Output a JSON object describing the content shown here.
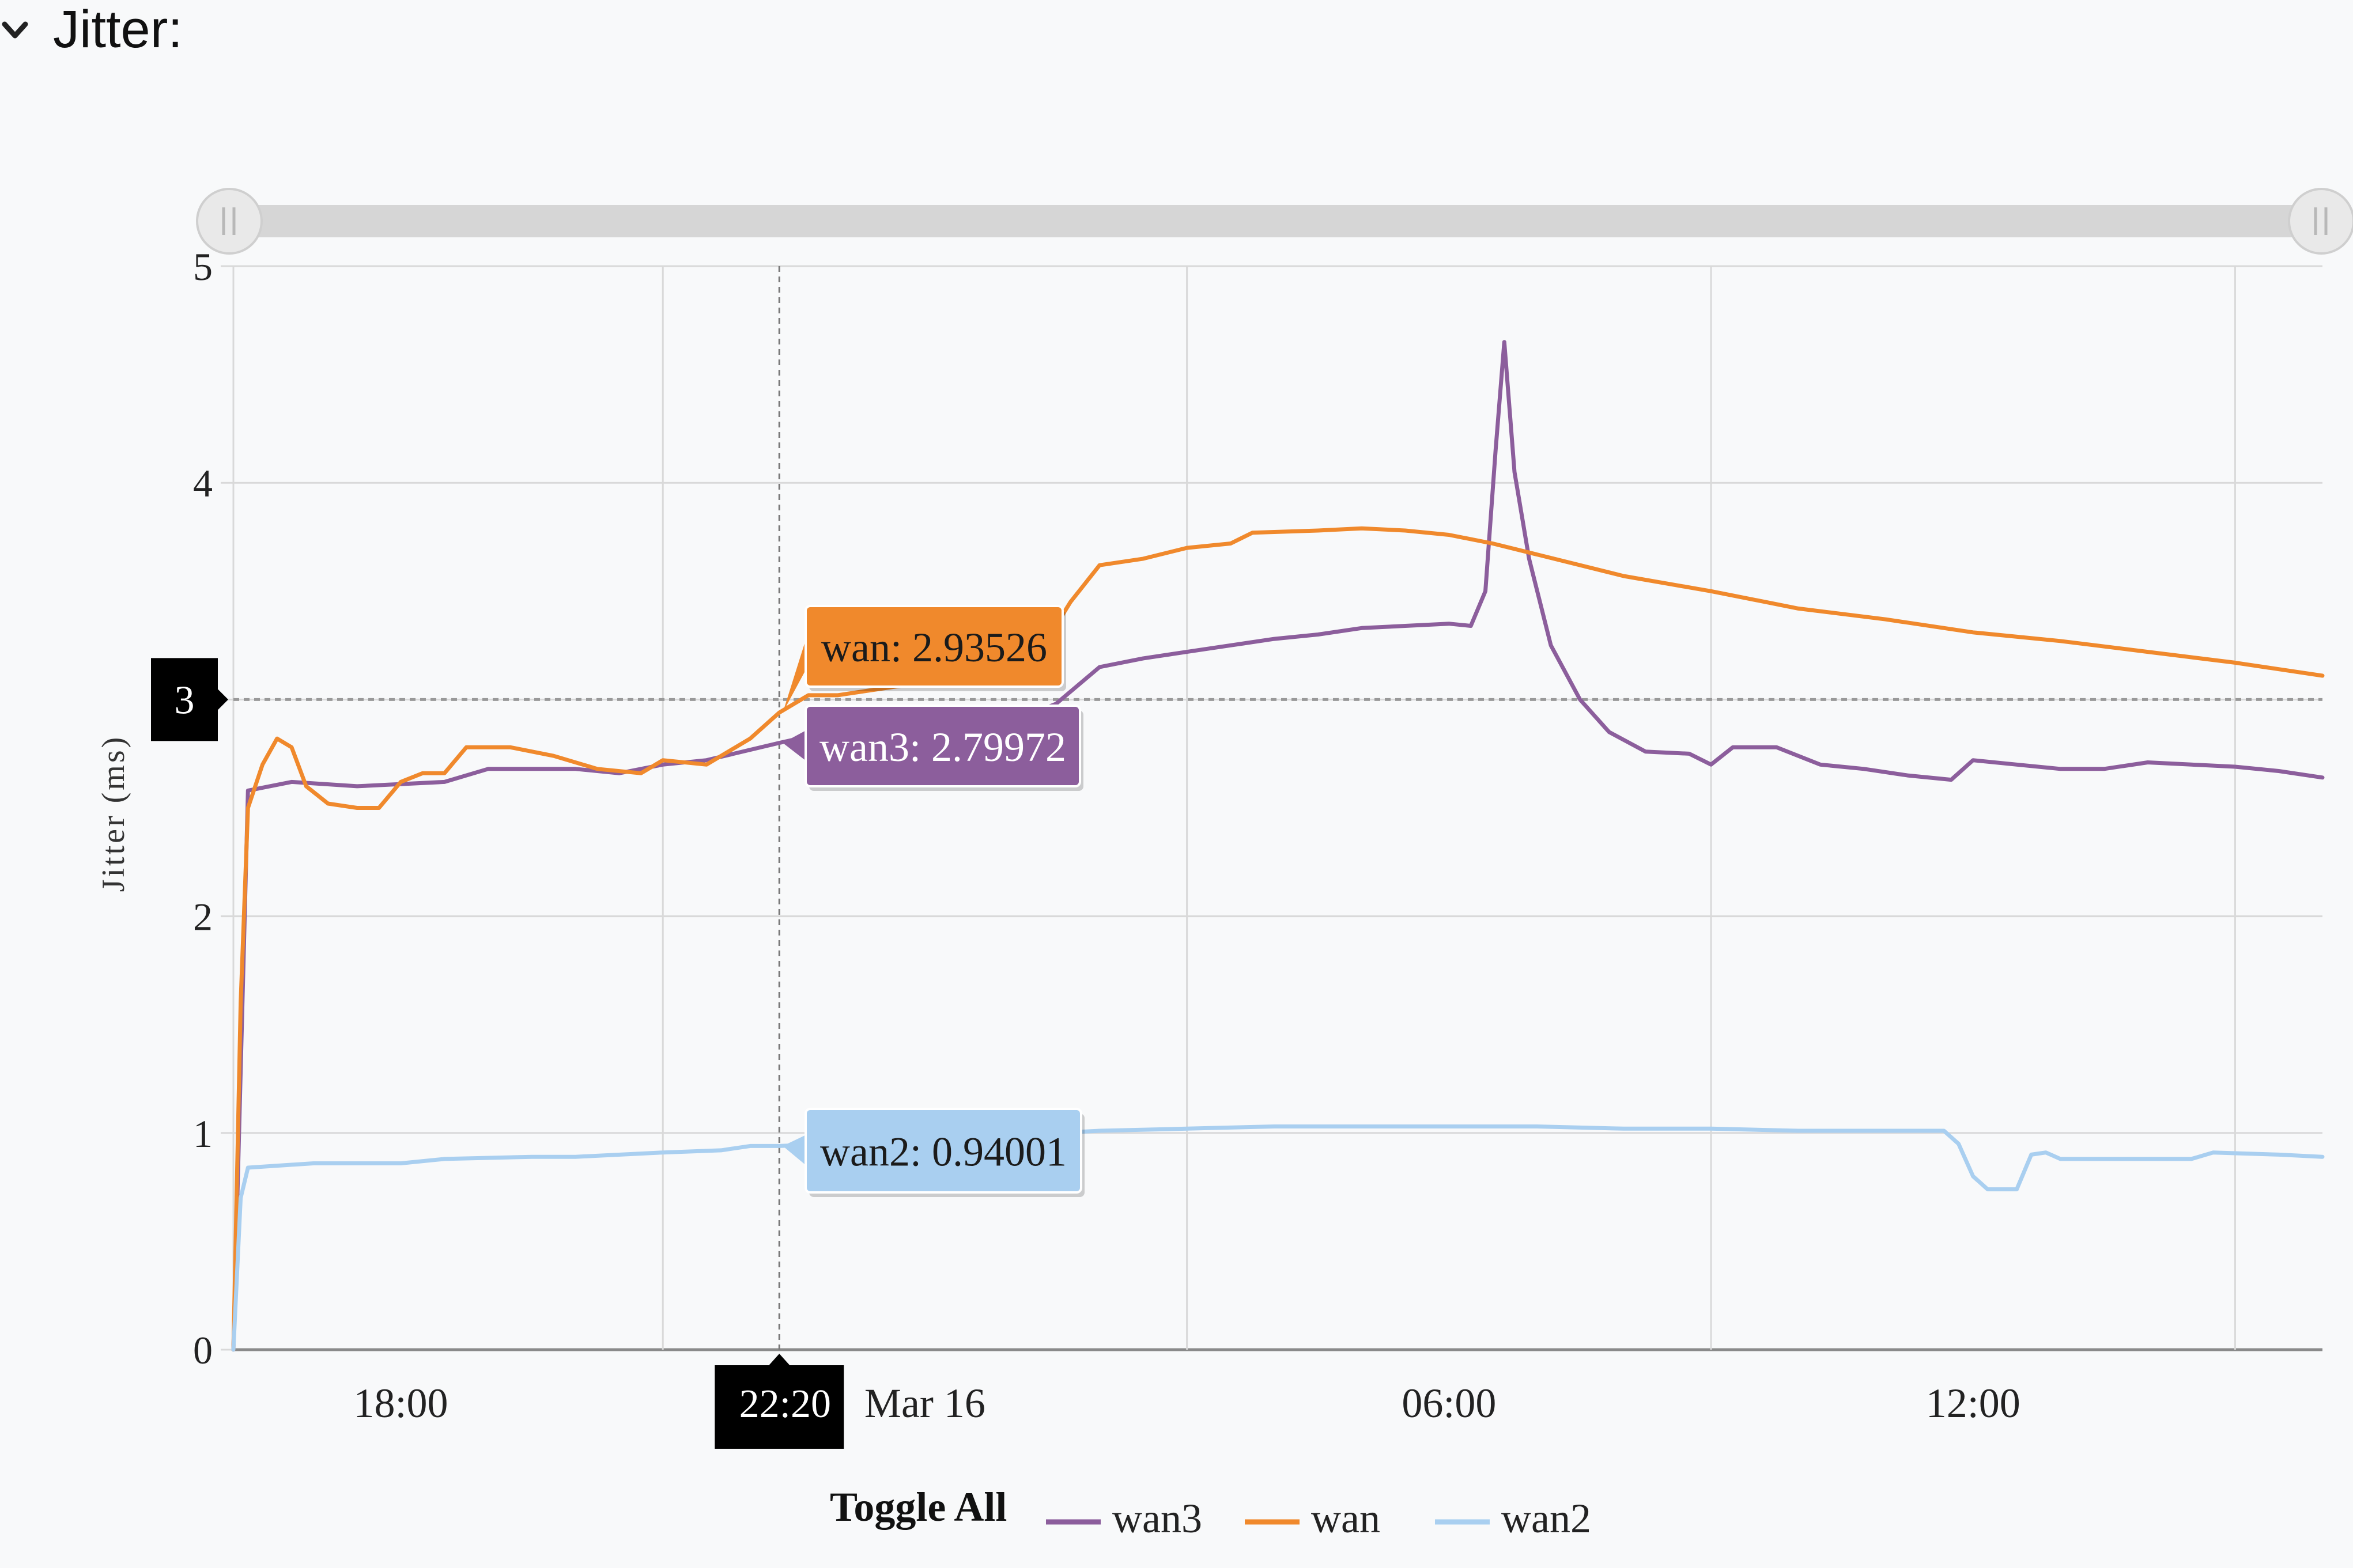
{
  "header": {
    "title": "Jitter:",
    "collapse_icon": "chevron-down-icon"
  },
  "chart_data": {
    "type": "line",
    "title": "",
    "xlabel": "",
    "ylabel": "Jitter (ms)",
    "ylim": [
      0,
      5
    ],
    "yticks": [
      0,
      1,
      2,
      3,
      4,
      5
    ],
    "xlim": [
      "2024-03-15T16:05",
      "2024-03-16T16:00"
    ],
    "xticks": [
      {
        "t": "2024-03-15T18:00",
        "label": "18:00"
      },
      {
        "t": "2024-03-16T00:00",
        "label": "Mar 16"
      },
      {
        "t": "2024-03-16T06:00",
        "label": "06:00"
      },
      {
        "t": "2024-03-16T12:00",
        "label": "12:00"
      }
    ],
    "gridlines_x": [
      "2024-03-15T21:00",
      "2024-03-16T03:00",
      "2024-03-16T09:00",
      "2024-03-16T15:00"
    ],
    "grid": true,
    "legend_position": "bottom",
    "toggle_all_label": "Toggle All",
    "crosshair": {
      "time": "2024-03-15T22:20",
      "time_label": "22:20",
      "y_value": 3,
      "y_label": "3"
    },
    "tooltips": [
      {
        "series": "wan",
        "text": "wan: 2.93526"
      },
      {
        "series": "wan3",
        "text": "wan3: 2.79972"
      },
      {
        "series": "wan2",
        "text": "wan2: 0.94001"
      }
    ],
    "series": [
      {
        "name": "wan3",
        "color": "#8c5e9c",
        "points": [
          [
            "2024-03-15T16:05",
            0.0
          ],
          [
            "2024-03-15T16:15",
            2.58
          ],
          [
            "2024-03-15T16:45",
            2.62
          ],
          [
            "2024-03-15T17:30",
            2.6
          ],
          [
            "2024-03-15T18:30",
            2.62
          ],
          [
            "2024-03-15T19:00",
            2.68
          ],
          [
            "2024-03-15T20:00",
            2.68
          ],
          [
            "2024-03-15T20:30",
            2.66
          ],
          [
            "2024-03-15T21:00",
            2.7
          ],
          [
            "2024-03-15T21:30",
            2.72
          ],
          [
            "2024-03-15T22:20",
            2.8
          ],
          [
            "2024-03-15T23:00",
            2.86
          ],
          [
            "2024-03-16T00:00",
            2.88
          ],
          [
            "2024-03-16T01:00",
            2.9
          ],
          [
            "2024-03-16T01:30",
            2.98
          ],
          [
            "2024-03-16T02:00",
            3.15
          ],
          [
            "2024-03-16T02:30",
            3.19
          ],
          [
            "2024-03-16T03:00",
            3.22
          ],
          [
            "2024-03-16T03:30",
            3.25
          ],
          [
            "2024-03-16T04:00",
            3.28
          ],
          [
            "2024-03-16T04:30",
            3.3
          ],
          [
            "2024-03-16T05:00",
            3.33
          ],
          [
            "2024-03-16T05:30",
            3.34
          ],
          [
            "2024-03-16T06:00",
            3.35
          ],
          [
            "2024-03-16T06:15",
            3.34
          ],
          [
            "2024-03-16T06:25",
            3.5
          ],
          [
            "2024-03-16T06:32",
            4.15
          ],
          [
            "2024-03-16T06:38",
            4.65
          ],
          [
            "2024-03-16T06:45",
            4.05
          ],
          [
            "2024-03-16T06:55",
            3.65
          ],
          [
            "2024-03-16T07:10",
            3.25
          ],
          [
            "2024-03-16T07:30",
            3.0
          ],
          [
            "2024-03-16T07:50",
            2.85
          ],
          [
            "2024-03-16T08:15",
            2.76
          ],
          [
            "2024-03-16T08:45",
            2.75
          ],
          [
            "2024-03-16T09:00",
            2.7
          ],
          [
            "2024-03-16T09:15",
            2.78
          ],
          [
            "2024-03-16T09:45",
            2.78
          ],
          [
            "2024-03-16T10:15",
            2.7
          ],
          [
            "2024-03-16T10:45",
            2.68
          ],
          [
            "2024-03-16T11:15",
            2.65
          ],
          [
            "2024-03-16T11:45",
            2.63
          ],
          [
            "2024-03-16T12:00",
            2.72
          ],
          [
            "2024-03-16T12:30",
            2.7
          ],
          [
            "2024-03-16T13:00",
            2.68
          ],
          [
            "2024-03-16T13:30",
            2.68
          ],
          [
            "2024-03-16T14:00",
            2.71
          ],
          [
            "2024-03-16T14:30",
            2.7
          ],
          [
            "2024-03-16T15:00",
            2.69
          ],
          [
            "2024-03-16T15:30",
            2.67
          ],
          [
            "2024-03-16T16:00",
            2.64
          ]
        ]
      },
      {
        "name": "wan",
        "color": "#f0892c",
        "points": [
          [
            "2024-03-15T16:05",
            0.0
          ],
          [
            "2024-03-15T16:10",
            1.6
          ],
          [
            "2024-03-15T16:15",
            2.5
          ],
          [
            "2024-03-15T16:25",
            2.7
          ],
          [
            "2024-03-15T16:35",
            2.82
          ],
          [
            "2024-03-15T16:45",
            2.78
          ],
          [
            "2024-03-15T16:55",
            2.6
          ],
          [
            "2024-03-15T17:10",
            2.52
          ],
          [
            "2024-03-15T17:30",
            2.5
          ],
          [
            "2024-03-15T17:45",
            2.5
          ],
          [
            "2024-03-15T18:00",
            2.62
          ],
          [
            "2024-03-15T18:15",
            2.66
          ],
          [
            "2024-03-15T18:30",
            2.66
          ],
          [
            "2024-03-15T18:45",
            2.78
          ],
          [
            "2024-03-15T19:15",
            2.78
          ],
          [
            "2024-03-15T19:45",
            2.74
          ],
          [
            "2024-03-15T20:15",
            2.68
          ],
          [
            "2024-03-15T20:45",
            2.66
          ],
          [
            "2024-03-15T21:00",
            2.72
          ],
          [
            "2024-03-15T21:30",
            2.7
          ],
          [
            "2024-03-15T22:00",
            2.82
          ],
          [
            "2024-03-15T22:20",
            2.94
          ],
          [
            "2024-03-15T22:40",
            3.02
          ],
          [
            "2024-03-15T23:00",
            3.02
          ],
          [
            "2024-03-16T00:00",
            3.08
          ],
          [
            "2024-03-16T00:45",
            3.1
          ],
          [
            "2024-03-16T01:15",
            3.18
          ],
          [
            "2024-03-16T01:40",
            3.45
          ],
          [
            "2024-03-16T02:00",
            3.62
          ],
          [
            "2024-03-16T02:30",
            3.65
          ],
          [
            "2024-03-16T03:00",
            3.7
          ],
          [
            "2024-03-16T03:30",
            3.72
          ],
          [
            "2024-03-16T03:45",
            3.77
          ],
          [
            "2024-03-16T04:30",
            3.78
          ],
          [
            "2024-03-16T05:00",
            3.79
          ],
          [
            "2024-03-16T05:30",
            3.78
          ],
          [
            "2024-03-16T06:00",
            3.76
          ],
          [
            "2024-03-16T06:30",
            3.72
          ],
          [
            "2024-03-16T07:00",
            3.67
          ],
          [
            "2024-03-16T08:00",
            3.57
          ],
          [
            "2024-03-16T09:00",
            3.5
          ],
          [
            "2024-03-16T10:00",
            3.42
          ],
          [
            "2024-03-16T11:00",
            3.37
          ],
          [
            "2024-03-16T12:00",
            3.31
          ],
          [
            "2024-03-16T13:00",
            3.27
          ],
          [
            "2024-03-16T14:00",
            3.22
          ],
          [
            "2024-03-16T15:00",
            3.17
          ],
          [
            "2024-03-16T16:00",
            3.11
          ]
        ]
      },
      {
        "name": "wan2",
        "color": "#a9cff0",
        "points": [
          [
            "2024-03-15T16:05",
            0.0
          ],
          [
            "2024-03-15T16:10",
            0.7
          ],
          [
            "2024-03-15T16:15",
            0.84
          ],
          [
            "2024-03-15T17:00",
            0.86
          ],
          [
            "2024-03-15T18:00",
            0.86
          ],
          [
            "2024-03-15T18:30",
            0.88
          ],
          [
            "2024-03-15T19:30",
            0.89
          ],
          [
            "2024-03-15T20:00",
            0.89
          ],
          [
            "2024-03-15T21:00",
            0.91
          ],
          [
            "2024-03-15T21:40",
            0.92
          ],
          [
            "2024-03-15T22:00",
            0.94
          ],
          [
            "2024-03-15T22:20",
            0.94
          ],
          [
            "2024-03-15T23:00",
            0.95
          ],
          [
            "2024-03-16T00:00",
            0.97
          ],
          [
            "2024-03-16T01:00",
            0.99
          ],
          [
            "2024-03-16T02:00",
            1.01
          ],
          [
            "2024-03-16T03:00",
            1.02
          ],
          [
            "2024-03-16T04:00",
            1.03
          ],
          [
            "2024-03-16T05:00",
            1.03
          ],
          [
            "2024-03-16T06:00",
            1.03
          ],
          [
            "2024-03-16T07:00",
            1.03
          ],
          [
            "2024-03-16T08:00",
            1.02
          ],
          [
            "2024-03-16T09:00",
            1.02
          ],
          [
            "2024-03-16T10:00",
            1.01
          ],
          [
            "2024-03-16T11:00",
            1.01
          ],
          [
            "2024-03-16T11:40",
            1.01
          ],
          [
            "2024-03-16T11:50",
            0.95
          ],
          [
            "2024-03-16T12:00",
            0.8
          ],
          [
            "2024-03-16T12:10",
            0.74
          ],
          [
            "2024-03-16T12:30",
            0.74
          ],
          [
            "2024-03-16T12:40",
            0.9
          ],
          [
            "2024-03-16T12:50",
            0.91
          ],
          [
            "2024-03-16T13:00",
            0.88
          ],
          [
            "2024-03-16T14:00",
            0.88
          ],
          [
            "2024-03-16T14:30",
            0.88
          ],
          [
            "2024-03-16T14:45",
            0.91
          ],
          [
            "2024-03-16T15:30",
            0.9
          ],
          [
            "2024-03-16T16:00",
            0.89
          ]
        ]
      }
    ]
  }
}
